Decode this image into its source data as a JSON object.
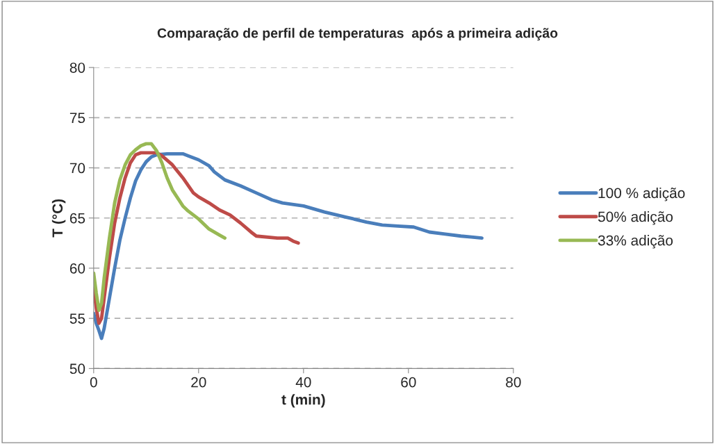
{
  "chart_data": {
    "type": "line",
    "title": "Comparação de perfil de temperaturas  após a primeira adição",
    "xlabel": "t (min)",
    "ylabel": "T (°C)",
    "xlim": [
      0,
      80
    ],
    "xticks": [
      0,
      20,
      40,
      60,
      80
    ],
    "ylim": [
      50,
      80
    ],
    "yticks": [
      50,
      55,
      60,
      65,
      70,
      75,
      80
    ],
    "grid": "y",
    "legend": "right",
    "marker": "none",
    "line_style": "solid",
    "series": [
      {
        "name": "100 % adição",
        "color": "#4a7ebb",
        "x": [
          0,
          0.5,
          1,
          1.5,
          2,
          3,
          4,
          5,
          6,
          7,
          8,
          9,
          10,
          11,
          12,
          14,
          17,
          18,
          20,
          22,
          23,
          25,
          28,
          31,
          34,
          36,
          40,
          44,
          48,
          52,
          55,
          58,
          61,
          64,
          67,
          70,
          72,
          74
        ],
        "values": [
          55.5,
          54.5,
          53.8,
          53,
          54,
          57,
          60,
          62.8,
          65,
          67,
          68.7,
          69.8,
          70.6,
          71.1,
          71.3,
          71.4,
          71.4,
          71.2,
          70.8,
          70.2,
          69.6,
          68.8,
          68.2,
          67.5,
          66.8,
          66.5,
          66.2,
          65.6,
          65.1,
          64.6,
          64.3,
          64.2,
          64.1,
          63.6,
          63.4,
          63.2,
          63.1,
          63
        ]
      },
      {
        "name": "50% adição",
        "color": "#be4b48",
        "x": [
          0,
          0.5,
          1,
          1.5,
          2,
          3,
          4,
          5,
          6,
          7,
          8,
          9,
          12,
          13,
          15,
          17,
          19,
          20,
          22,
          24,
          26,
          28,
          30,
          31,
          35,
          37,
          38,
          39
        ],
        "values": [
          58,
          56,
          54.5,
          55,
          57,
          61,
          64.5,
          67,
          69,
          70.5,
          71.3,
          71.5,
          71.5,
          71.2,
          70.3,
          69,
          67.5,
          67.1,
          66.5,
          65.8,
          65.3,
          64.5,
          63.6,
          63.2,
          63,
          63,
          62.7,
          62.5
        ]
      },
      {
        "name": "33% adição",
        "color": "#98b954",
        "x": [
          0,
          0.5,
          1,
          1.5,
          2,
          3,
          4,
          5,
          6,
          7,
          8,
          9,
          10,
          11,
          12,
          13,
          14,
          15,
          16,
          17,
          18,
          20,
          22,
          24,
          25
        ],
        "values": [
          59.5,
          57.5,
          55.8,
          56.5,
          59,
          63,
          66.5,
          68.8,
          70.3,
          71.3,
          71.8,
          72.2,
          72.4,
          72.4,
          71.7,
          70.5,
          69,
          67.8,
          67,
          66.2,
          65.7,
          64.9,
          63.9,
          63.3,
          63
        ]
      }
    ]
  }
}
